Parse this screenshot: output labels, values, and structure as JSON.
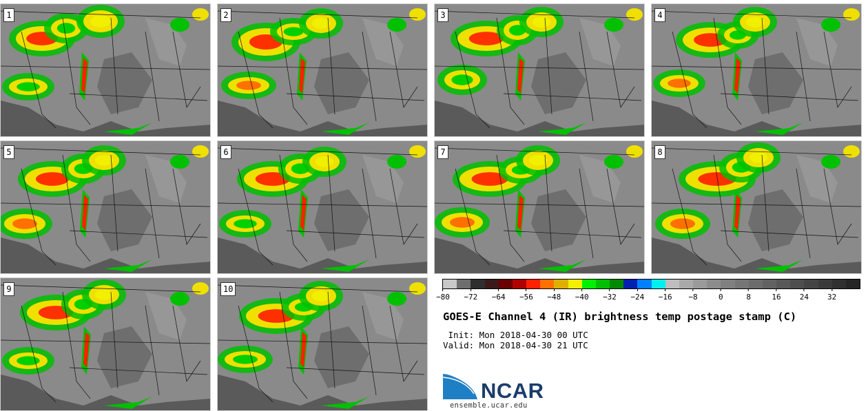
{
  "title": "GOES-E Channel 4 (IR) brightness temp postage stamp (C)",
  "init_text": " Init: Mon 2018-04-30 00 UTC",
  "valid_text": "Valid: Mon 2018-04-30 21 UTC",
  "logo_text": "NCAR",
  "website": "ensemble.ucar.edu",
  "members": [
    {
      "label": "1"
    },
    {
      "label": "2"
    },
    {
      "label": "3"
    },
    {
      "label": "4"
    },
    {
      "label": "5"
    },
    {
      "label": "6"
    },
    {
      "label": "7"
    },
    {
      "label": "8"
    },
    {
      "label": "9"
    },
    {
      "label": "10"
    }
  ],
  "colorbar": {
    "units": "C",
    "range": [
      -80,
      40
    ],
    "interval": 4,
    "tick_labels": [
      "−80",
      "−72",
      "−64",
      "−56",
      "−48",
      "−40",
      "−32",
      "−24",
      "−16",
      "−8",
      "0",
      "8",
      "16",
      "24",
      "32"
    ],
    "tick_values": [
      -80,
      -72,
      -64,
      -56,
      -48,
      -40,
      -32,
      -24,
      -16,
      -8,
      0,
      8,
      16,
      24,
      32
    ],
    "colors": [
      "#c8c8c8",
      "#6e6e6e",
      "#2e2e2e",
      "#3a1a1a",
      "#6a0000",
      "#b00000",
      "#ff2000",
      "#ff7000",
      "#e0b000",
      "#f0f000",
      "#00f000",
      "#00c000",
      "#008800",
      "#0020b0",
      "#0080ff",
      "#00f0f0",
      "#bebebe",
      "#aaaaaa",
      "#9a9a9a",
      "#8c8c8c",
      "#808080",
      "#767676",
      "#6c6c6c",
      "#626262",
      "#585858",
      "#4e4e4e",
      "#444444",
      "#3a3a3a",
      "#303030",
      "#262626"
    ]
  }
}
